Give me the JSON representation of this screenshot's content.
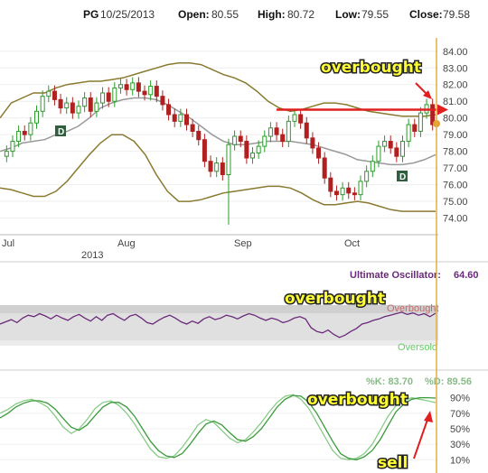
{
  "header": {
    "symbol": "PG",
    "date": "10/25/2013",
    "open_label": "Open:",
    "open": "80.55",
    "high_label": "High:",
    "high": "80.72",
    "low_label": "Low:",
    "low": "79.55",
    "close_label": "Close:",
    "close": "79.58"
  },
  "colors": {
    "up_candle": "#2a9d2a",
    "down_candle": "#b02020",
    "bollinger": "#8a7a30",
    "sma": "#999999",
    "ultimate": "#6a2a7a",
    "stoch_k": "#88cc88",
    "stoch_d": "#3a9a3a",
    "annotation_arrow": "#e02020",
    "cursor": "#e0b040"
  },
  "annotations": {
    "overbought_price": "overbought",
    "overbought_ultimate": "overbought",
    "overbought_stoch": "overbought",
    "sell": "sell"
  },
  "chart_data": [
    {
      "type": "candlestick",
      "ylim": [
        73,
        84.8
      ],
      "y_ticks": [
        74,
        75,
        76,
        77,
        78,
        79,
        80,
        81,
        82,
        83,
        84
      ],
      "y_tick_labels": [
        "74.00",
        "75.00",
        "76.00",
        "77.00",
        "78.00",
        "79.00",
        "80.00",
        "81.00",
        "82.00",
        "83.00",
        "84.00"
      ],
      "x_labels": [
        "Jul",
        "Aug",
        "Sep",
        "Oct"
      ],
      "year_label": "2013",
      "dividend_markers": [
        "D",
        "D"
      ],
      "closes": [
        78.0,
        78.6,
        79.2,
        79.0,
        79.7,
        80.4,
        81.3,
        81.6,
        81.1,
        80.6,
        80.9,
        80.3,
        80.7,
        81.2,
        80.4,
        80.9,
        81.5,
        81.0,
        81.8,
        82.0,
        81.7,
        82.1,
        81.6,
        81.4,
        81.9,
        81.3,
        80.8,
        80.2,
        79.8,
        80.2,
        79.6,
        79.2,
        78.7,
        77.4,
        76.8,
        77.3,
        76.6,
        78.4,
        78.9,
        78.6,
        77.6,
        77.9,
        78.3,
        78.9,
        79.4,
        79.0,
        78.6,
        79.8,
        80.2,
        79.7,
        78.8,
        78.2,
        77.6,
        76.4,
        75.6,
        75.4,
        75.8,
        75.5,
        75.4,
        76.2,
        76.8,
        77.4,
        78.3,
        78.6,
        78.2,
        77.7,
        78.6,
        79.6,
        79.2,
        80.3,
        80.8,
        79.6
      ],
      "bollinger_upper": [
        80.0,
        80.9,
        81.2,
        81.5,
        81.5,
        81.8,
        82.0,
        82.1,
        82.2,
        82.2,
        82.3,
        82.4,
        82.6,
        82.8,
        83.0,
        83.2,
        83.3,
        83.3,
        83.2,
        82.9,
        82.6,
        82.4,
        82.1,
        81.6,
        81.0,
        80.6,
        80.4,
        80.5,
        80.7,
        80.9,
        80.9,
        80.8,
        80.6,
        80.4,
        80.3,
        80.2,
        80.1,
        80.1,
        80.1,
        80.2
      ],
      "bollinger_middle": [
        78.0,
        78.2,
        78.5,
        78.6,
        78.7,
        79.0,
        79.2,
        79.5,
        80.0,
        80.6,
        80.9,
        81.1,
        81.2,
        81.2,
        81.1,
        80.8,
        80.4,
        80.0,
        79.5,
        79.0,
        78.6,
        78.4,
        78.4,
        78.5,
        78.6,
        78.6,
        78.6,
        78.5,
        78.4,
        78.2,
        78.0,
        77.8,
        77.5,
        77.4,
        77.3,
        77.2,
        77.2,
        77.3,
        77.5,
        77.8
      ],
      "bollinger_lower": [
        75.8,
        75.7,
        75.5,
        75.3,
        75.3,
        75.6,
        76.2,
        77.0,
        77.8,
        78.5,
        79.0,
        79.0,
        78.6,
        77.8,
        76.6,
        75.6,
        75.0,
        75.0,
        75.1,
        75.3,
        75.5,
        75.6,
        75.7,
        75.8,
        75.9,
        75.9,
        75.8,
        75.5,
        75.1,
        74.8,
        74.8,
        74.9,
        75.0,
        74.9,
        74.7,
        74.5,
        74.4,
        74.4,
        74.4,
        74.4
      ],
      "horizontal_level": 80.5
    },
    {
      "type": "line",
      "title": "Ultimate Oscillator:",
      "value": "64.60",
      "overbought_label": "Overbought",
      "oversold_label": "Oversold",
      "ylim": [
        0,
        100
      ],
      "overbought_level": 70,
      "oversold_level": 30,
      "values": [
        50,
        53,
        56,
        52,
        58,
        62,
        60,
        64,
        61,
        57,
        62,
        58,
        55,
        60,
        63,
        58,
        54,
        60,
        55,
        62,
        64,
        59,
        55,
        61,
        63,
        58,
        52,
        50,
        55,
        59,
        62,
        58,
        53,
        50,
        54,
        51,
        57,
        60,
        56,
        58,
        62,
        60,
        57,
        61,
        64,
        62,
        58,
        55,
        58,
        56,
        52,
        54,
        58,
        60,
        57,
        45,
        40,
        38,
        42,
        36,
        32,
        35,
        40,
        44,
        50,
        52,
        55,
        57,
        60,
        62,
        64,
        66,
        63,
        65,
        62,
        64,
        60,
        64.6
      ]
    },
    {
      "type": "line",
      "title_k": "%K: 83.70",
      "title_d": "%D: 89.56",
      "ylim": [
        0,
        100
      ],
      "y_ticks": [
        10,
        30,
        50,
        70,
        90
      ],
      "y_tick_labels": [
        "10%",
        "30%",
        "50%",
        "70%",
        "90%"
      ],
      "series": [
        {
          "name": "%K",
          "values": [
            70,
            75,
            82,
            86,
            88,
            84,
            78,
            66,
            52,
            44,
            50,
            62,
            76,
            84,
            86,
            80,
            70,
            56,
            40,
            24,
            14,
            12,
            15,
            26,
            40,
            55,
            62,
            58,
            48,
            38,
            32,
            36,
            46,
            58,
            72,
            84,
            92,
            94,
            88,
            76,
            58,
            40,
            22,
            12,
            10,
            12,
            18,
            30,
            48,
            66,
            80,
            86,
            90,
            88,
            86,
            83.7
          ]
        },
        {
          "name": "%D",
          "values": [
            64,
            70,
            78,
            83,
            86,
            86,
            83,
            75,
            63,
            52,
            48,
            55,
            67,
            78,
            84,
            84,
            78,
            66,
            50,
            34,
            22,
            15,
            13,
            18,
            30,
            44,
            56,
            60,
            55,
            45,
            36,
            34,
            40,
            50,
            64,
            78,
            88,
            93,
            92,
            84,
            70,
            52,
            34,
            18,
            12,
            10,
            14,
            22,
            36,
            54,
            72,
            82,
            88,
            90,
            90,
            89.56
          ]
        }
      ]
    }
  ]
}
